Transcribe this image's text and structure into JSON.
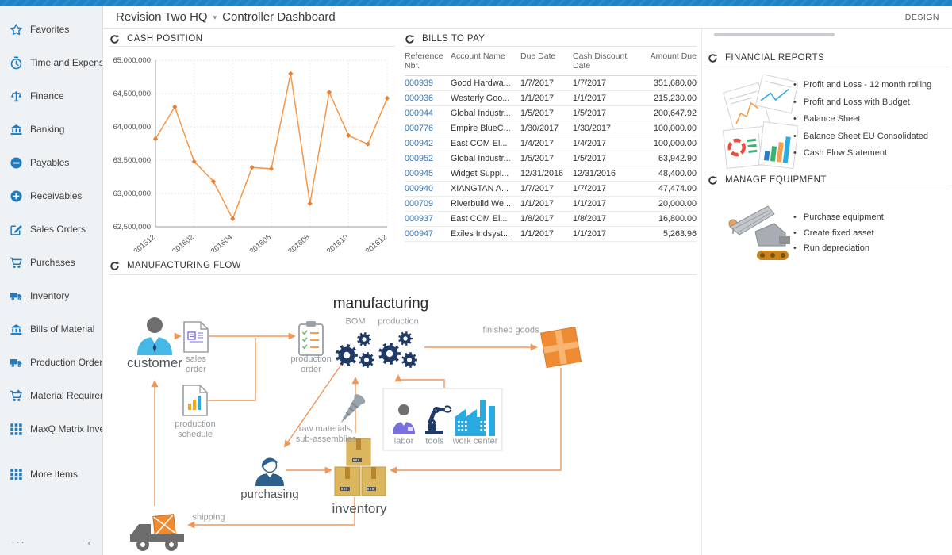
{
  "header": {
    "company": "Revision Two HQ",
    "caret": "▾",
    "page_title": "Controller Dashboard",
    "design_label": "DESIGN"
  },
  "sidebar": {
    "items": [
      {
        "icon": "star",
        "label": "Favorites"
      },
      {
        "icon": "clock",
        "label": "Time and Expenses"
      },
      {
        "icon": "scales",
        "label": "Finance"
      },
      {
        "icon": "bank",
        "label": "Banking"
      },
      {
        "icon": "minus-circle",
        "label": "Payables"
      },
      {
        "icon": "plus-circle",
        "label": "Receivables"
      },
      {
        "icon": "edit",
        "label": "Sales Orders"
      },
      {
        "icon": "cart",
        "label": "Purchases"
      },
      {
        "icon": "truck",
        "label": "Inventory"
      },
      {
        "icon": "bank",
        "label": "Bills of Material"
      },
      {
        "icon": "truck",
        "label": "Production Orders"
      },
      {
        "icon": "cart-plus",
        "label": "Material Requirem..."
      },
      {
        "icon": "grid",
        "label": "MaxQ Matrix Invent..."
      },
      {
        "icon": "grid",
        "label": "More Items",
        "gap_before": true
      }
    ],
    "footer": {
      "more": "···",
      "collapse": "‹"
    }
  },
  "panels": {
    "cash_position": {
      "title": "CASH POSITION"
    },
    "bills_to_pay": {
      "title": "BILLS TO PAY",
      "columns": [
        "Reference Nbr.",
        "Account Name",
        "Due Date",
        "Cash Discount Date",
        "Amount Due"
      ],
      "rows": [
        {
          "ref": "000939",
          "account": "Good Hardwa...",
          "due": "1/7/2017",
          "discount": "1/7/2017",
          "amount": "351,680.00"
        },
        {
          "ref": "000936",
          "account": "Westerly Goo...",
          "due": "1/1/2017",
          "discount": "1/1/2017",
          "amount": "215,230.00"
        },
        {
          "ref": "000944",
          "account": "Global Industr...",
          "due": "1/5/2017",
          "discount": "1/5/2017",
          "amount": "200,647.92"
        },
        {
          "ref": "000776",
          "account": "Empire BlueC...",
          "due": "1/30/2017",
          "discount": "1/30/2017",
          "amount": "100,000.00"
        },
        {
          "ref": "000942",
          "account": "East COM El...",
          "due": "1/4/2017",
          "discount": "1/4/2017",
          "amount": "100,000.00"
        },
        {
          "ref": "000952",
          "account": "Global Industr...",
          "due": "1/5/2017",
          "discount": "1/5/2017",
          "amount": "63,942.90"
        },
        {
          "ref": "000945",
          "account": "Widget Suppl...",
          "due": "12/31/2016",
          "discount": "12/31/2016",
          "amount": "48,400.00"
        },
        {
          "ref": "000940",
          "account": "XIANGTAN A...",
          "due": "1/7/2017",
          "discount": "1/7/2017",
          "amount": "47,474.00"
        },
        {
          "ref": "000709",
          "account": "Riverbuild We...",
          "due": "1/1/2017",
          "discount": "1/1/2017",
          "amount": "20,000.00"
        },
        {
          "ref": "000937",
          "account": "East COM El...",
          "due": "1/8/2017",
          "discount": "1/8/2017",
          "amount": "16,800.00"
        },
        {
          "ref": "000947",
          "account": "Exiles Indsyst...",
          "due": "1/1/2017",
          "discount": "1/1/2017",
          "amount": "5,263.96"
        }
      ]
    },
    "financial_reports": {
      "title": "FINANCIAL REPORTS",
      "links": [
        "Profit and Loss - 12 month rolling",
        "Profit and Loss with Budget",
        "Balance Sheet",
        "Balance Sheet EU Consolidated",
        "Cash Flow Statement"
      ]
    },
    "manage_equipment": {
      "title": "MANAGE EQUIPMENT",
      "links": [
        "Purchase equipment",
        "Create fixed asset",
        "Run depreciation"
      ]
    },
    "manufacturing_flow": {
      "title": "MANUFACTURING FLOW",
      "nodes": {
        "customer": "customer",
        "sales_order": "sales\norder",
        "production_schedule": "production\nschedule",
        "production_order": "production\norder",
        "manufacturing": "manufacturing",
        "bom": "BOM",
        "production": "production",
        "finished_goods": "finished goods",
        "raw_materials": "raw materials,\nsub-assemblies",
        "labor": "labor",
        "tools": "tools",
        "work_center": "work center",
        "purchasing": "purchasing",
        "inventory": "inventory",
        "shipping": "shipping"
      }
    }
  },
  "chart_data": {
    "type": "line",
    "title": "Cash Position",
    "x": [
      "201512",
      "201601",
      "201602",
      "201603",
      "201604",
      "201605",
      "201606",
      "201607",
      "201608",
      "201609",
      "201610",
      "201611",
      "201612"
    ],
    "xticks_shown": [
      "201512",
      "201602",
      "201604",
      "201606",
      "201608",
      "201610",
      "201612"
    ],
    "values": [
      63820000,
      64300000,
      63480000,
      63180000,
      62620000,
      63390000,
      63370000,
      64800000,
      62850000,
      64520000,
      63870000,
      63740000,
      64430000
    ],
    "ylim": [
      62500000,
      65000000
    ],
    "ytick_step": 500000,
    "grid": true,
    "legend": "none",
    "line_color": "#f79646",
    "point_color": "#ed7d31"
  },
  "colors": {
    "topbar_blue": "#1e82c4",
    "sidebar_icon_blue": "#1f7cc0",
    "link_blue": "#3977b4",
    "diagram_orange": "#ef975b",
    "gear_navy": "#1f3a66",
    "factory_blue": "#29abe2"
  }
}
